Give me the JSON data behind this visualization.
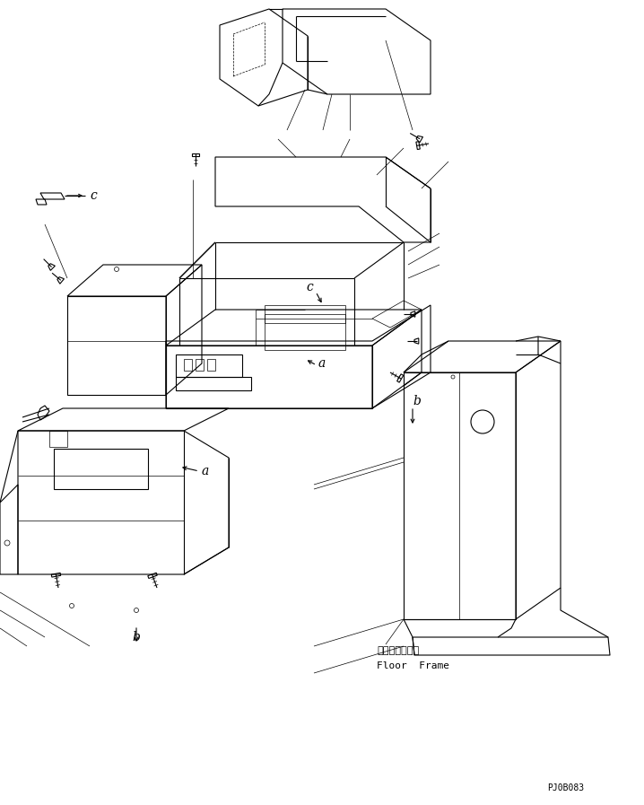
{
  "bg_color": "#ffffff",
  "line_color": "#000000",
  "lw": 0.8,
  "lw_thin": 0.5,
  "title_code": "PJ0B083",
  "floor_frame_jp": "フロアフレーム",
  "floor_frame_en": "Floor  Frame",
  "label_a": "a",
  "label_b": "b",
  "label_c": "c",
  "fs_label": 10,
  "fs_code": 7,
  "fs_floor": 8
}
